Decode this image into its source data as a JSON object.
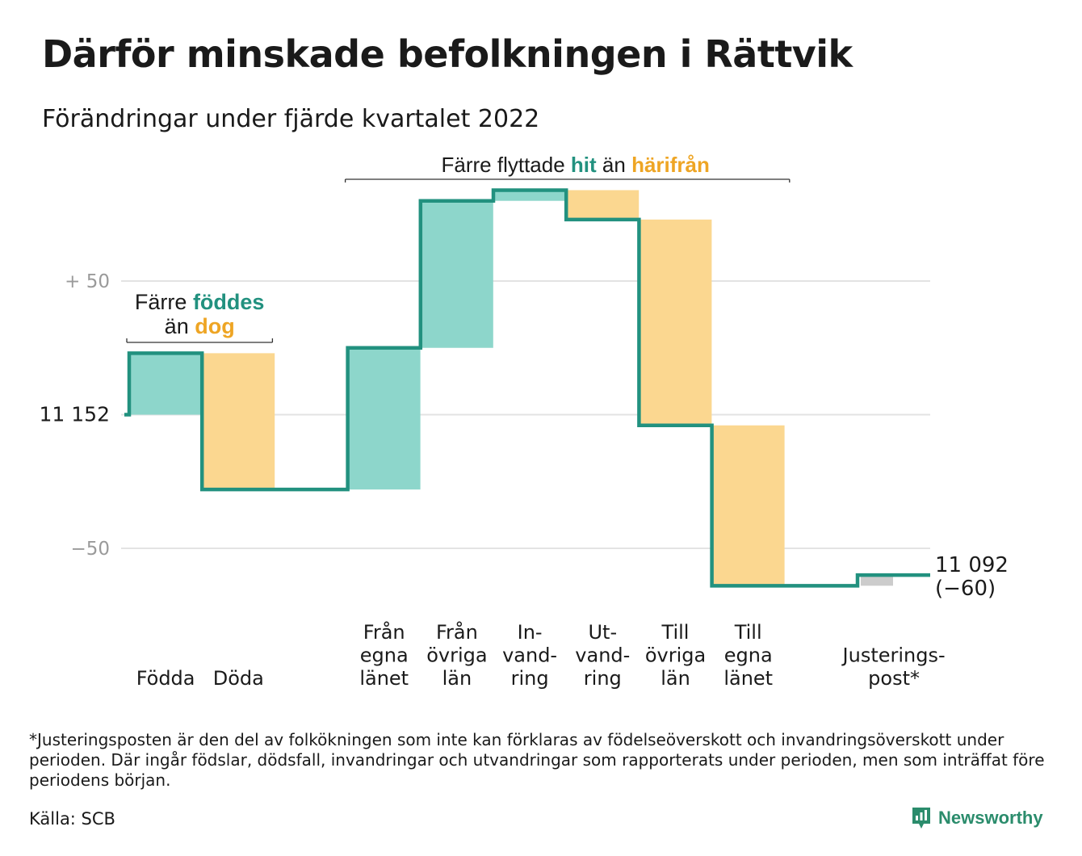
{
  "title": "Därför minskade befolkningen i Rättvik",
  "subtitle": "Förändringar under fjärde kvartalet 2022",
  "annotations": {
    "births_deaths": {
      "line1_prefix": "Färre ",
      "line1_hit": "föddes",
      "line2_prefix": "än ",
      "line2_away": "dog"
    },
    "migration": {
      "prefix": "Färre flyttade ",
      "hit": "hit",
      "mid": " än ",
      "away": "härifrån"
    }
  },
  "chart_data": {
    "type": "waterfall",
    "start_value": 11152,
    "end_value_label": "11 092",
    "end_change_label": "(−60)",
    "y_tick_labels": [
      {
        "value": 50,
        "label": "+ 50"
      },
      {
        "value": 0,
        "label": "11 152"
      },
      {
        "value": -50,
        "label": "−50"
      }
    ],
    "ylim": [
      -68,
      85
    ],
    "grid": true,
    "steps": [
      {
        "label": [
          "Födda"
        ],
        "delta": 23,
        "kind": "inflow"
      },
      {
        "label": [
          "Döda"
        ],
        "delta": -51,
        "kind": "outflow"
      },
      {
        "label": [
          ""
        ],
        "delta": 0,
        "kind": "none"
      },
      {
        "label": [
          "Från",
          "egna",
          "länet"
        ],
        "delta": 53,
        "kind": "inflow"
      },
      {
        "label": [
          "Från",
          "övriga",
          "län"
        ],
        "delta": 55,
        "kind": "inflow"
      },
      {
        "label": [
          "In-",
          "vand-",
          "ring"
        ],
        "delta": 4,
        "kind": "inflow"
      },
      {
        "label": [
          "Ut-",
          "vand-",
          "ring"
        ],
        "delta": -11,
        "kind": "outflow"
      },
      {
        "label": [
          "Till",
          "övriga",
          "län"
        ],
        "delta": -77,
        "kind": "outflow"
      },
      {
        "label": [
          "Till",
          "egna",
          "länet"
        ],
        "delta": -60,
        "kind": "outflow"
      },
      {
        "label": [
          ""
        ],
        "delta": 0,
        "kind": "none"
      },
      {
        "label": [
          "Justerings-",
          "post*"
        ],
        "delta": 4,
        "kind": "adjustment"
      }
    ],
    "colors": {
      "inflow": "#8dd6cb",
      "outflow": "#fbd790",
      "adjustment": "#cccccc",
      "line": "#22917f",
      "hit_text": "#22917f",
      "away_text": "#eea524",
      "grid": "#e3e3e3",
      "tick_text": "#9a9a9a"
    }
  },
  "footnote": "*Justeringsposten är den del av folkökningen som inte kan förklaras av födelseöverskott och invandringsöverskott under perioden. Där ingår födslar, dödsfall, invandringar och utvandringar som rapporterats under perioden, men som inträffat före periodens början.",
  "source": "Källa: SCB",
  "brand": {
    "name": "Newsworthy",
    "icon": "newsworthy-logo-icon"
  }
}
